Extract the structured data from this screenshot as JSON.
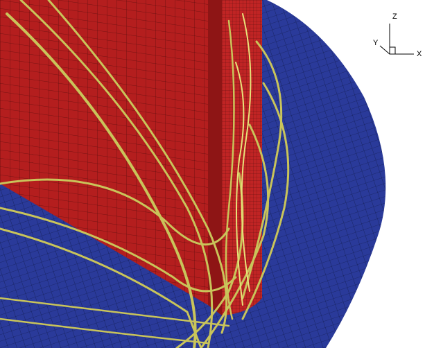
{
  "axes_triad": {
    "z": "Z",
    "y": "Y",
    "x": "X"
  }
}
